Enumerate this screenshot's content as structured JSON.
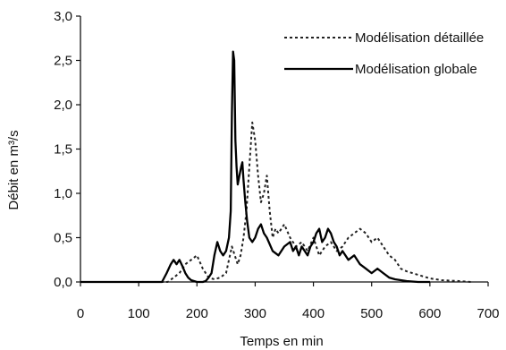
{
  "chart_data": {
    "type": "line",
    "title": "",
    "xlabel": "Temps en min",
    "ylabel": "Débit en m³/s",
    "xlim": [
      0,
      700
    ],
    "ylim": [
      0,
      3
    ],
    "xticks": [
      0,
      100,
      200,
      300,
      400,
      500,
      600,
      700
    ],
    "xtick_labels": [
      "0",
      "100",
      "200",
      "300",
      "400",
      "500",
      "600",
      "700"
    ],
    "yticks": [
      0,
      0.5,
      1,
      1.5,
      2,
      2.5,
      3
    ],
    "ytick_labels": [
      "0,0",
      "0,5",
      "1,0",
      "1,5",
      "2,0",
      "2,5",
      "3,0"
    ],
    "grid": false,
    "legend_position": "top-right",
    "colors": {
      "axis": "#111111",
      "detailed": "#222222",
      "global": "#000000"
    },
    "series": [
      {
        "name": "Modélisation détaillée",
        "style": "dotted",
        "x": [
          0,
          150,
          160,
          170,
          180,
          190,
          200,
          210,
          220,
          230,
          240,
          250,
          255,
          260,
          265,
          270,
          275,
          280,
          285,
          290,
          295,
          300,
          305,
          310,
          315,
          320,
          325,
          330,
          335,
          340,
          350,
          360,
          370,
          380,
          390,
          400,
          410,
          420,
          430,
          440,
          450,
          460,
          470,
          480,
          490,
          500,
          510,
          520,
          530,
          540,
          550,
          560,
          570,
          580,
          600,
          620,
          650,
          670
        ],
        "y": [
          0,
          0,
          0.05,
          0.1,
          0.2,
          0.25,
          0.3,
          0.15,
          0.05,
          0.03,
          0.05,
          0.1,
          0.25,
          0.4,
          0.3,
          0.2,
          0.3,
          0.5,
          0.8,
          1.3,
          1.8,
          1.6,
          1.2,
          0.9,
          1.0,
          1.2,
          0.8,
          0.5,
          0.6,
          0.55,
          0.65,
          0.5,
          0.4,
          0.45,
          0.35,
          0.5,
          0.3,
          0.4,
          0.45,
          0.35,
          0.4,
          0.5,
          0.55,
          0.6,
          0.55,
          0.45,
          0.5,
          0.4,
          0.3,
          0.25,
          0.15,
          0.12,
          0.1,
          0.08,
          0.04,
          0.02,
          0.01,
          0
        ]
      },
      {
        "name": "Modélisation globale",
        "style": "solid",
        "x": [
          0,
          140,
          148,
          155,
          160,
          165,
          170,
          175,
          180,
          185,
          190,
          195,
          200,
          210,
          215,
          220,
          225,
          230,
          235,
          240,
          245,
          250,
          255,
          258,
          260,
          262,
          264,
          266,
          268,
          270,
          273,
          276,
          278,
          280,
          283,
          286,
          290,
          295,
          300,
          305,
          310,
          315,
          320,
          330,
          340,
          350,
          360,
          365,
          370,
          375,
          380,
          385,
          390,
          395,
          400,
          405,
          410,
          415,
          420,
          425,
          430,
          435,
          440,
          445,
          450,
          460,
          470,
          480,
          490,
          500,
          510,
          520,
          530,
          540,
          550,
          560,
          580,
          600
        ],
        "y": [
          0,
          0,
          0.1,
          0.2,
          0.25,
          0.2,
          0.25,
          0.18,
          0.1,
          0.05,
          0.02,
          0.01,
          0,
          0,
          0.01,
          0.05,
          0.1,
          0.3,
          0.45,
          0.35,
          0.3,
          0.35,
          0.5,
          0.8,
          1.9,
          2.6,
          2.5,
          1.6,
          1.3,
          1.1,
          1.2,
          1.3,
          1.35,
          1.15,
          0.9,
          0.7,
          0.5,
          0.45,
          0.5,
          0.6,
          0.65,
          0.55,
          0.5,
          0.35,
          0.3,
          0.4,
          0.45,
          0.35,
          0.4,
          0.3,
          0.4,
          0.35,
          0.3,
          0.4,
          0.45,
          0.55,
          0.6,
          0.45,
          0.5,
          0.6,
          0.55,
          0.45,
          0.4,
          0.3,
          0.35,
          0.25,
          0.3,
          0.2,
          0.15,
          0.1,
          0.15,
          0.1,
          0.05,
          0.03,
          0.02,
          0.01,
          0,
          0
        ]
      }
    ]
  }
}
